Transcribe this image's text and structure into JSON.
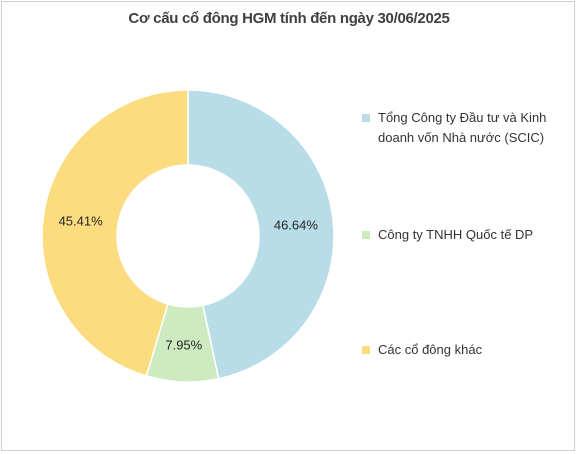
{
  "chart_data": {
    "type": "pie",
    "variant": "donut",
    "title": "Cơ cấu cổ đông HGM tính đến ngày 30/06/2025",
    "categories": [
      "Tổng Công ty Đầu tư và Kinh doanh vốn Nhà nước (SCIC)",
      "Công ty TNHH Quốc tế DP",
      "Các cổ đông khác"
    ],
    "values": [
      46.64,
      7.95,
      45.41
    ],
    "data_labels": [
      "46.64%",
      "7.95%",
      "45.41%"
    ],
    "colors": [
      "#b8dde8",
      "#cdeac0",
      "#fbdc7e"
    ],
    "legend_position": "right"
  }
}
